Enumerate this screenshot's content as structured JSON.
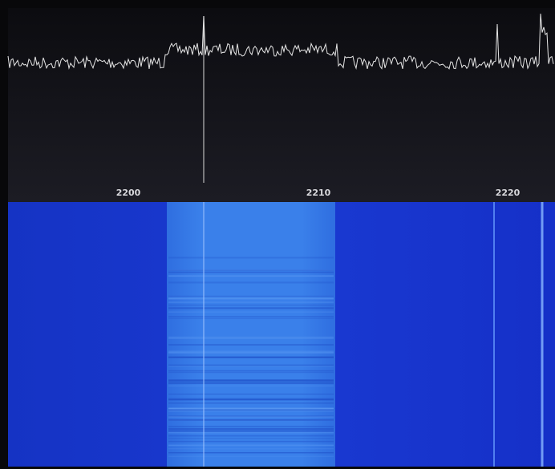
{
  "frequency_axis": {
    "labels": [
      "2200",
      "2210",
      "2220"
    ]
  }
}
